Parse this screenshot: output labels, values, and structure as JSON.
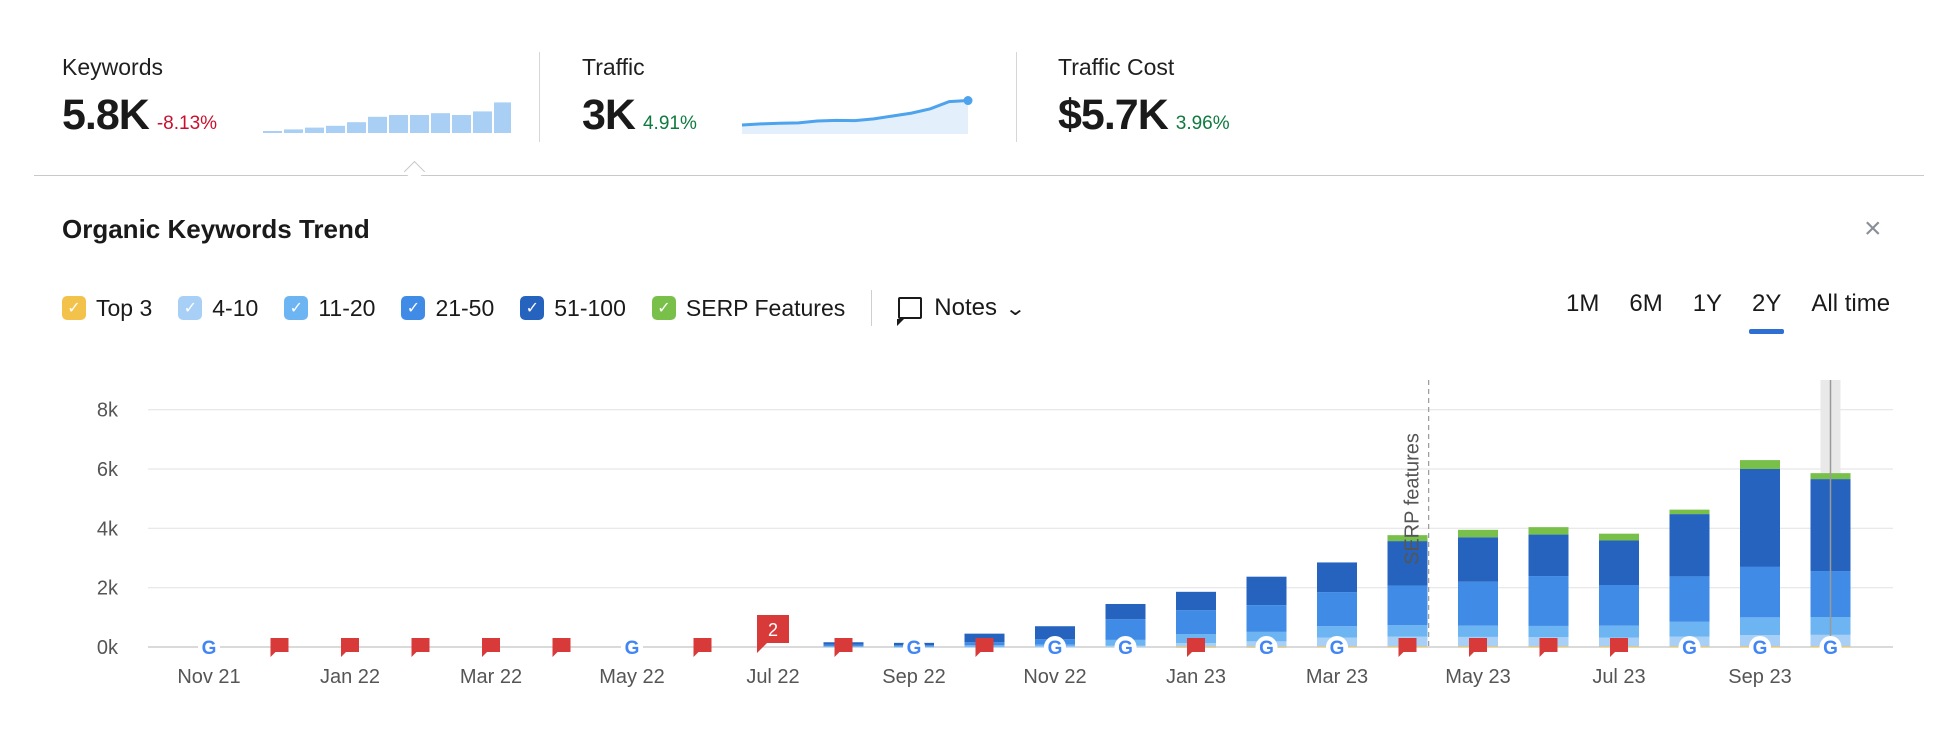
{
  "metrics": [
    {
      "label": "Keywords",
      "value": "5.8K",
      "delta": "-8.13%",
      "trend": "negative"
    },
    {
      "label": "Traffic",
      "value": "3K",
      "delta": "4.91%",
      "trend": "positive"
    },
    {
      "label": "Traffic Cost",
      "value": "$5.7K",
      "delta": "3.96%",
      "trend": "positive"
    }
  ],
  "keywords_sparkline": [
    0.05,
    0.1,
    0.15,
    0.2,
    0.3,
    0.45,
    0.5,
    0.5,
    0.55,
    0.5,
    0.6,
    0.85,
    0.78
  ],
  "traffic_sparkline": [
    0.25,
    0.28,
    0.3,
    0.31,
    0.36,
    0.38,
    0.37,
    0.42,
    0.5,
    0.58,
    0.7,
    0.9,
    0.93
  ],
  "trend": {
    "title": "Organic Keywords Trend",
    "close_label": "×"
  },
  "legend": [
    {
      "label": "Top 3",
      "color": "#f3c24a"
    },
    {
      "label": "4-10",
      "color": "#a8d0f7"
    },
    {
      "label": "11-20",
      "color": "#6cb4f2"
    },
    {
      "label": "21-50",
      "color": "#3f8be6"
    },
    {
      "label": "51-100",
      "color": "#2563be"
    },
    {
      "label": "SERP Features",
      "color": "#78c04a"
    }
  ],
  "notes": {
    "label": "Notes",
    "icon": "note-icon"
  },
  "ranges": [
    {
      "label": "1M",
      "active": false
    },
    {
      "label": "6M",
      "active": false
    },
    {
      "label": "1Y",
      "active": false
    },
    {
      "label": "2Y",
      "active": true
    },
    {
      "label": "All time",
      "active": false
    }
  ],
  "chart_data": {
    "type": "bar",
    "stacked": true,
    "x_labels": [
      "Nov 21",
      "Jan 22",
      "Mar 22",
      "May 22",
      "Jul 22",
      "Sep 22",
      "Nov 22",
      "Jan 23",
      "Mar 23",
      "May 23",
      "Jul 23",
      "Sep 23"
    ],
    "categories": [
      "Nov 21",
      "Dec 21",
      "Jan 22",
      "Feb 22",
      "Mar 22",
      "Apr 22",
      "May 22",
      "Jun 22",
      "Jul 22",
      "Aug 22",
      "Sep 22",
      "Oct 22",
      "Nov 22",
      "Dec 22",
      "Jan 23",
      "Feb 23",
      "Mar 23",
      "Apr 23",
      "May 23",
      "Jun 23",
      "Jul 23",
      "Aug 23",
      "Sep 23",
      "Oct 23"
    ],
    "series": [
      {
        "name": "Top 3",
        "color": "#f3c24a",
        "values": [
          0,
          0,
          0,
          0,
          0,
          0,
          0,
          0,
          0,
          0,
          0,
          0,
          0,
          0,
          10,
          10,
          20,
          20,
          20,
          20,
          20,
          20,
          30,
          30
        ]
      },
      {
        "name": "4-10",
        "color": "#a8d0f7",
        "values": [
          0,
          0,
          0,
          0,
          0,
          0,
          0,
          0,
          0,
          0,
          0,
          10,
          20,
          40,
          120,
          180,
          300,
          330,
          320,
          310,
          300,
          330,
          370,
          380
        ]
      },
      {
        "name": "11-20",
        "color": "#6cb4f2",
        "values": [
          0,
          0,
          0,
          0,
          0,
          0,
          0,
          0,
          0,
          30,
          20,
          50,
          60,
          200,
          300,
          320,
          380,
          390,
          380,
          380,
          400,
          500,
          600,
          600
        ]
      },
      {
        "name": "21-50",
        "color": "#3f8be6",
        "values": [
          0,
          0,
          0,
          0,
          0,
          0,
          0,
          0,
          0,
          50,
          40,
          100,
          180,
          700,
          810,
          900,
          1150,
          1330,
          1480,
          1680,
          1370,
          1530,
          1700,
          1550
        ]
      },
      {
        "name": "51-100",
        "color": "#2563be",
        "values": [
          0,
          0,
          0,
          0,
          0,
          0,
          0,
          0,
          0,
          80,
          80,
          290,
          440,
          510,
          620,
          960,
          1000,
          1500,
          1500,
          1400,
          1500,
          2100,
          3300,
          3100
        ]
      },
      {
        "name": "SERP Features",
        "color": "#78c04a",
        "values": [
          0,
          0,
          0,
          0,
          0,
          0,
          0,
          0,
          0,
          0,
          0,
          0,
          0,
          0,
          0,
          0,
          0,
          200,
          250,
          250,
          230,
          150,
          300,
          200
        ]
      }
    ],
    "yticks": [
      "0k",
      "2k",
      "4k",
      "6k",
      "8k"
    ],
    "ylim": [
      0,
      9000
    ],
    "markers": [
      "google",
      "flag",
      "flag",
      "flag",
      "flag",
      "flag",
      "google",
      "flag",
      "flag-2",
      "flag",
      "google",
      "flag",
      "google",
      "google",
      "flag",
      "google",
      "google",
      "flag",
      "flag",
      "flag",
      "flag",
      "google",
      "google",
      "google"
    ],
    "note_count": "2",
    "annotation": "SERP features",
    "grid": true
  }
}
